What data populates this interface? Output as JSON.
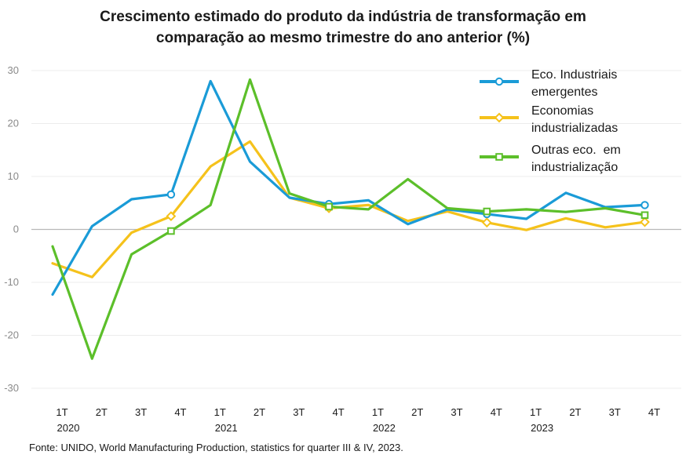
{
  "chart_data": {
    "type": "line",
    "title_lines": [
      "Crescimento estimado do produto da indústria de transformação em",
      "comparação ao mesmo trimestre do ano anterior (%)"
    ],
    "quarters": [
      "1T",
      "2T",
      "3T",
      "4T",
      "1T",
      "2T",
      "3T",
      "4T",
      "1T",
      "2T",
      "3T",
      "4T",
      "1T",
      "2T",
      "3T",
      "4T"
    ],
    "years": [
      {
        "label": "2020",
        "index": 0
      },
      {
        "label": "2021",
        "index": 4
      },
      {
        "label": "2022",
        "index": 8
      },
      {
        "label": "2023",
        "index": 12
      }
    ],
    "ylim": [
      -30,
      30
    ],
    "yticks": [
      -30,
      -20,
      -10,
      0,
      10,
      20,
      30
    ],
    "grid": true,
    "legend_position": "top-right",
    "series": [
      {
        "name": "Eco. Industriais emergentes",
        "legend_lines": [
          "Eco. Industriais",
          "emergentes"
        ],
        "color": "#1a9bd7",
        "marker": "circle",
        "marker_indices": [
          3,
          7,
          11,
          15
        ],
        "values": [
          -12.3,
          0.6,
          5.7,
          6.6,
          28.0,
          12.8,
          6.0,
          4.8,
          5.5,
          1.0,
          3.8,
          2.9,
          2.0,
          6.9,
          4.2,
          4.6
        ]
      },
      {
        "name": "Economias industrializadas",
        "legend_lines": [
          "Economias",
          "industrializadas"
        ],
        "color": "#f5c21b",
        "marker": "diamond",
        "marker_indices": [
          3,
          7,
          11,
          15
        ],
        "values": [
          -6.4,
          -9.0,
          -0.6,
          2.5,
          11.9,
          16.6,
          6.0,
          4.0,
          4.6,
          1.6,
          3.4,
          1.3,
          -0.1,
          2.1,
          0.4,
          1.4
        ]
      },
      {
        "name": "Outras eco. em industrialização",
        "legend_lines": [
          "Outras eco.  em",
          "industrialização"
        ],
        "color": "#5cbf2a",
        "marker": "square",
        "marker_indices": [
          3,
          7,
          11,
          15
        ],
        "values": [
          -3.2,
          -24.4,
          -4.7,
          -0.3,
          4.6,
          28.3,
          6.8,
          4.3,
          3.8,
          9.5,
          4.0,
          3.4,
          3.8,
          3.3,
          4.0,
          2.7
        ]
      }
    ],
    "source": "Fonte: UNIDO, World Manufacturing Production, statistics for quarter III & IV, 2023."
  }
}
